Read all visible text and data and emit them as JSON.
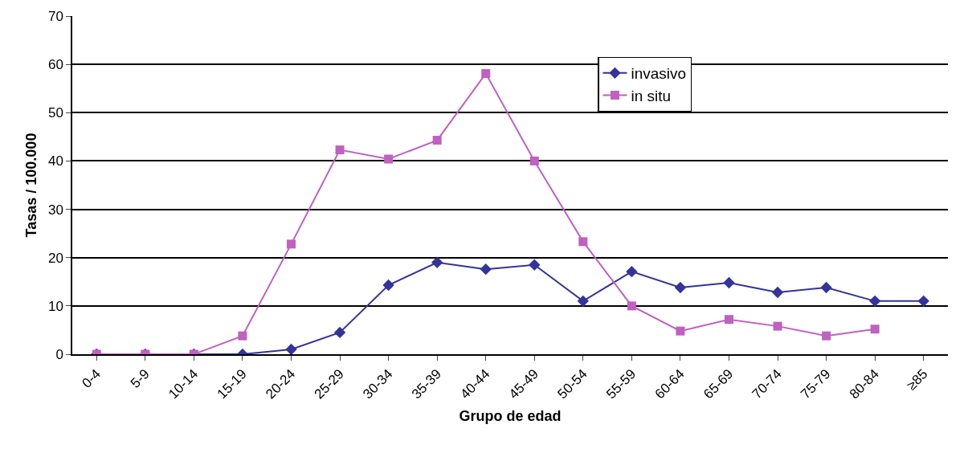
{
  "chart_data": {
    "type": "line",
    "xlabel": "Grupo de edad",
    "ylabel": "Tasas / 100.000",
    "categories": [
      "0-4",
      "5-9",
      "10-14",
      "15-19",
      "20-24",
      "25-29",
      "30-34",
      "35-39",
      "40-44",
      "45-49",
      "50-54",
      "55-59",
      "60-64",
      "65-69",
      "70-74",
      "75-79",
      "80-84",
      "≥85"
    ],
    "series": [
      {
        "name": "invasivo",
        "color": "#333399",
        "marker": "diamond",
        "values": [
          0,
          0,
          0,
          0,
          1,
          4.5,
          14.3,
          19,
          17.6,
          18.5,
          11,
          17.1,
          13.8,
          14.8,
          12.8,
          13.8,
          11,
          11
        ]
      },
      {
        "name": "in situ",
        "color": "#c060c0",
        "marker": "square",
        "values": [
          0,
          0,
          0,
          3.8,
          22.8,
          42.3,
          40.4,
          44.3,
          58.1,
          40,
          23.3,
          10,
          4.8,
          7.2,
          5.8,
          3.8,
          5.2,
          null
        ]
      }
    ],
    "ylim": [
      0,
      70
    ],
    "yticks": [
      0,
      10,
      20,
      30,
      40,
      50,
      60,
      70
    ],
    "grid": "y",
    "legend": "top right",
    "line_style": "solid"
  }
}
